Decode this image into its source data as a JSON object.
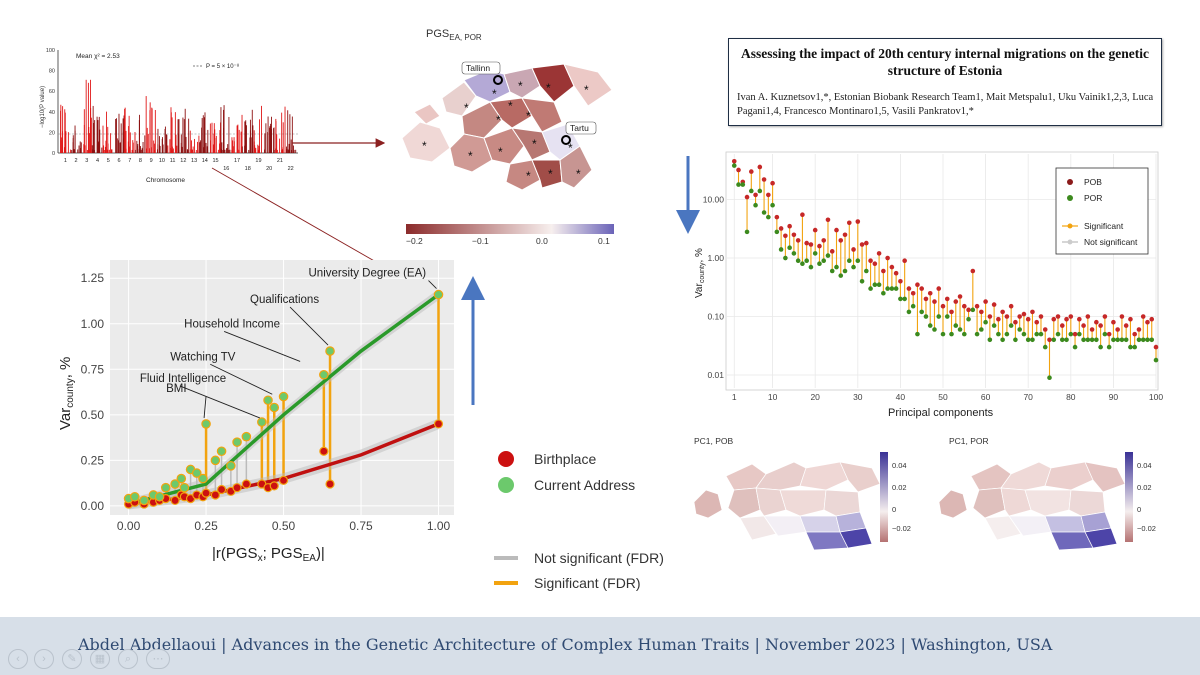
{
  "footer": {
    "text": "Abdel Abdellaoui | Advances in the Genetic Architecture of Complex Human Traits | November 2023 | Washington, USA",
    "nav_icons": [
      "prev-icon",
      "next-icon",
      "pen-icon",
      "slides-icon",
      "zoom-icon",
      "more-icon"
    ]
  },
  "paper": {
    "title": "Assessing the impact of 20th century internal migrations on the genetic structure of Estonia",
    "authors": "Ivan A. Kuznetsov1,*, Estonian Biobank Research Team1, Mait Metspalu1, Uku Vainik1,2,3, Luca Pagani1,4, Francesco Montinaro1,5, Vasili Pankratov1,*"
  },
  "manhattan": {
    "ylabel": "−log10(P value)",
    "mean_label": "Mean χ² = 2.53",
    "threshold_label": "P = 5 × 10⁻⁸",
    "xlabel": "Chromosome",
    "yticks": [
      "100",
      "80",
      "60",
      "40",
      "20",
      "0"
    ],
    "xticks_row1": [
      "1",
      "2",
      "3",
      "4",
      "5",
      "6",
      "7",
      "8",
      "9",
      "10",
      "11",
      "12",
      "13",
      "14",
      "15",
      "17",
      "19",
      "21"
    ],
    "xticks_row2": [
      "16",
      "18",
      "20",
      "22"
    ]
  },
  "map_top": {
    "title": "PGS",
    "title_sub": "EA, POR",
    "cities": [
      "Tallinn",
      "Tartu"
    ],
    "colorbar_ticks": [
      "−0.2",
      "−0.1",
      "0.0",
      "0.1"
    ],
    "colors": {
      "low": "#8b2b2b",
      "mid": "#f7efee",
      "high": "#6a63b8"
    }
  },
  "map_pc1_pob": {
    "title": "PC1, POB",
    "ticks": [
      "0.04",
      "0.02",
      "0",
      "−0.02"
    ]
  },
  "map_pc1_por": {
    "title": "PC1, POR",
    "ticks": [
      "0.04",
      "0.02",
      "0",
      "−0.02"
    ]
  },
  "legend_main": {
    "birthplace": "Birthplace",
    "current": "Current Address",
    "not_sig": "Not significant (FDR)",
    "sig": "Significant (FDR)"
  },
  "legend_pc": {
    "pob": "POB",
    "por": "POR",
    "sig": "Significant",
    "not_sig": "Not significant"
  },
  "chart_data": [
    {
      "type": "scatter",
      "xlabel": "|r(PGSx; PGSEA)|",
      "ylabel": "Varcounty, %",
      "xlim": [
        0,
        1
      ],
      "ylim": [
        0,
        1.3
      ],
      "xticks": [
        "0.00",
        "0.25",
        "0.50",
        "0.75",
        "1.00"
      ],
      "yticks": [
        "0.00",
        "0.25",
        "0.50",
        "0.75",
        "1.00",
        "1.25"
      ],
      "grid": true,
      "annotations": [
        {
          "label": "University Degree (EA)",
          "x": 1.0,
          "y": 1.16
        },
        {
          "label": "Qualifications",
          "x": 0.65,
          "y": 0.85
        },
        {
          "label": "Household Income",
          "x": 0.56,
          "y": 0.76
        },
        {
          "label": "Watching TV",
          "x": 0.47,
          "y": 0.58
        },
        {
          "label": "Fluid Intelligence",
          "x": 0.43,
          "y": 0.45
        },
        {
          "label": "BMI",
          "x": 0.25,
          "y": 0.45
        }
      ],
      "series": [
        {
          "name": "Birthplace",
          "color": "#cc1010",
          "fit": [
            [
              0,
              0.01
            ],
            [
              0.25,
              0.06
            ],
            [
              0.5,
              0.15
            ],
            [
              0.75,
              0.28
            ],
            [
              1.0,
              0.45
            ]
          ],
          "x": [
            0.0,
            0.02,
            0.05,
            0.08,
            0.1,
            0.12,
            0.15,
            0.17,
            0.18,
            0.2,
            0.22,
            0.24,
            0.25,
            0.28,
            0.3,
            0.33,
            0.35,
            0.38,
            0.43,
            0.45,
            0.47,
            0.5,
            0.63,
            0.65,
            1.0
          ],
          "y": [
            0.01,
            0.02,
            0.01,
            0.02,
            0.03,
            0.04,
            0.03,
            0.06,
            0.05,
            0.04,
            0.06,
            0.05,
            0.07,
            0.06,
            0.09,
            0.08,
            0.1,
            0.12,
            0.12,
            0.1,
            0.11,
            0.14,
            0.3,
            0.12,
            0.45
          ]
        },
        {
          "name": "Current Address",
          "color": "#6cc96c",
          "fit": [
            [
              0,
              0.01
            ],
            [
              0.25,
              0.12
            ],
            [
              0.5,
              0.5
            ],
            [
              0.75,
              0.85
            ],
            [
              1.0,
              1.16
            ]
          ],
          "x": [
            0.0,
            0.02,
            0.05,
            0.08,
            0.1,
            0.12,
            0.15,
            0.17,
            0.18,
            0.2,
            0.22,
            0.24,
            0.25,
            0.28,
            0.3,
            0.33,
            0.35,
            0.38,
            0.43,
            0.45,
            0.47,
            0.5,
            0.63,
            0.65,
            1.0
          ],
          "y": [
            0.04,
            0.05,
            0.03,
            0.06,
            0.05,
            0.1,
            0.12,
            0.15,
            0.1,
            0.2,
            0.18,
            0.15,
            0.45,
            0.25,
            0.3,
            0.22,
            0.35,
            0.38,
            0.46,
            0.58,
            0.54,
            0.6,
            0.72,
            0.85,
            1.16
          ]
        }
      ],
      "significant_pairs_x": [
        0.25,
        0.43,
        0.45,
        0.47,
        0.5,
        0.63,
        0.65,
        1.0
      ]
    },
    {
      "type": "scatter",
      "xlabel": "Principal components",
      "ylabel": "Varcounty, %",
      "scale_y": "log",
      "xlim": [
        1,
        100
      ],
      "ylim": [
        0.006,
        60
      ],
      "xticks": [
        "1",
        "10",
        "20",
        "30",
        "40",
        "50",
        "60",
        "70",
        "80",
        "90",
        "100"
      ],
      "yticks": [
        "10.00",
        "1.00",
        "0.10",
        "0.01"
      ],
      "grid": true,
      "legend": "top-right",
      "series": [
        {
          "name": "POB",
          "color": "#8b1a1a",
          "x": [
            1,
            2,
            3,
            4,
            5,
            6,
            7,
            8,
            9,
            10,
            11,
            12,
            13,
            14,
            15,
            16,
            17,
            18,
            19,
            20,
            21,
            22,
            23,
            24,
            25,
            26,
            27,
            28,
            29,
            30,
            31,
            32,
            33,
            34,
            35,
            36,
            37,
            38,
            39,
            40,
            41,
            42,
            43,
            44,
            45,
            46,
            47,
            48,
            49,
            50,
            51,
            52,
            53,
            54,
            55,
            56,
            57,
            58,
            59,
            60,
            61,
            62,
            63,
            64,
            65,
            66,
            67,
            68,
            69,
            70,
            71,
            72,
            73,
            74,
            75,
            76,
            77,
            78,
            79,
            80,
            81,
            82,
            83,
            84,
            85,
            86,
            87,
            88,
            89,
            90,
            91,
            92,
            93,
            94,
            95,
            96,
            97,
            98,
            99,
            100
          ],
          "y": [
            45,
            32,
            20,
            11,
            30,
            12,
            36,
            22,
            12,
            19,
            5,
            3.2,
            2.4,
            3.5,
            2.5,
            2.0,
            5.5,
            1.8,
            1.7,
            3.0,
            1.6,
            2.0,
            4.5,
            1.3,
            3.0,
            2.0,
            2.5,
            4.0,
            1.4,
            4.2,
            1.7,
            1.8,
            0.9,
            0.8,
            1.2,
            0.6,
            1.0,
            0.7,
            0.55,
            0.4,
            0.9,
            0.3,
            0.25,
            0.35,
            0.3,
            0.2,
            0.25,
            0.18,
            0.3,
            0.15,
            0.2,
            0.12,
            0.18,
            0.22,
            0.15,
            0.13,
            0.6,
            0.15,
            0.12,
            0.18,
            0.1,
            0.16,
            0.09,
            0.12,
            0.1,
            0.15,
            0.08,
            0.1,
            0.11,
            0.09,
            0.12,
            0.08,
            0.1,
            0.06,
            0.04,
            0.09,
            0.1,
            0.07,
            0.09,
            0.1,
            0.05,
            0.09,
            0.07,
            0.1,
            0.06,
            0.08,
            0.07,
            0.1,
            0.05,
            0.08,
            0.06,
            0.1,
            0.07,
            0.09,
            0.05,
            0.06,
            0.1,
            0.08,
            0.09,
            0.03
          ]
        },
        {
          "name": "POR",
          "color": "#3c8a1e",
          "x": [
            1,
            2,
            3,
            4,
            5,
            6,
            7,
            8,
            9,
            10,
            11,
            12,
            13,
            14,
            15,
            16,
            17,
            18,
            19,
            20,
            21,
            22,
            23,
            24,
            25,
            26,
            27,
            28,
            29,
            30,
            31,
            32,
            33,
            34,
            35,
            36,
            37,
            38,
            39,
            40,
            41,
            42,
            43,
            44,
            45,
            46,
            47,
            48,
            49,
            50,
            51,
            52,
            53,
            54,
            55,
            56,
            57,
            58,
            59,
            60,
            61,
            62,
            63,
            64,
            65,
            66,
            67,
            68,
            69,
            70,
            71,
            72,
            73,
            74,
            75,
            76,
            77,
            78,
            79,
            80,
            81,
            82,
            83,
            84,
            85,
            86,
            87,
            88,
            89,
            90,
            91,
            92,
            93,
            94,
            95,
            96,
            97,
            98,
            99,
            100
          ],
          "y": [
            38,
            18,
            18,
            2.8,
            14,
            8,
            14,
            6,
            5,
            8,
            2.8,
            1.4,
            1.0,
            1.5,
            1.2,
            0.9,
            0.8,
            0.9,
            0.7,
            1.2,
            0.8,
            0.9,
            1.1,
            0.6,
            0.7,
            0.5,
            0.6,
            0.9,
            0.7,
            0.9,
            0.4,
            0.6,
            0.3,
            0.35,
            0.35,
            0.25,
            0.3,
            0.3,
            0.3,
            0.2,
            0.2,
            0.12,
            0.15,
            0.05,
            0.12,
            0.1,
            0.07,
            0.06,
            0.1,
            0.05,
            0.1,
            0.05,
            0.07,
            0.06,
            0.05,
            0.09,
            0.13,
            0.05,
            0.06,
            0.08,
            0.04,
            0.07,
            0.05,
            0.04,
            0.05,
            0.07,
            0.04,
            0.06,
            0.05,
            0.04,
            0.04,
            0.05,
            0.05,
            0.03,
            0.009,
            0.04,
            0.05,
            0.04,
            0.04,
            0.05,
            0.03,
            0.05,
            0.04,
            0.04,
            0.04,
            0.04,
            0.03,
            0.05,
            0.03,
            0.04,
            0.04,
            0.04,
            0.04,
            0.03,
            0.03,
            0.04,
            0.04,
            0.04,
            0.04,
            0.018
          ]
        }
      ]
    }
  ]
}
